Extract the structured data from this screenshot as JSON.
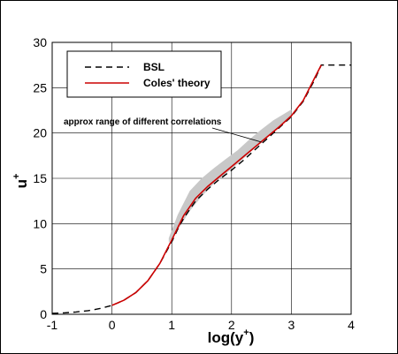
{
  "chart_data": {
    "type": "line",
    "title": "",
    "xlabel": "log(y",
    "xlabel_sup": "+",
    "xlabel_close": ")",
    "ylabel": "u",
    "ylabel_sup": "+",
    "xlim": [
      -1,
      4
    ],
    "ylim": [
      0,
      30
    ],
    "x_ticks": [
      "-1",
      "0",
      "1",
      "2",
      "3",
      "4"
    ],
    "y_ticks": [
      "0",
      "5",
      "10",
      "15",
      "20",
      "25",
      "30"
    ],
    "grid": true,
    "legend_position": "top-left",
    "series": [
      {
        "name": "BSL",
        "style": "dashed",
        "color": "#000000",
        "x": [
          -1.0,
          -0.8,
          -0.6,
          -0.4,
          -0.2,
          0.0,
          0.2,
          0.4,
          0.6,
          0.8,
          1.0,
          1.1,
          1.2,
          1.4,
          1.6,
          1.8,
          2.0,
          2.2,
          2.4,
          2.6,
          2.8,
          3.0,
          3.2,
          3.4,
          3.5,
          3.6,
          4.0
        ],
        "y": [
          0.1,
          0.16,
          0.25,
          0.4,
          0.63,
          0.98,
          1.55,
          2.4,
          3.7,
          5.6,
          8.0,
          9.4,
          10.6,
          12.5,
          13.8,
          14.9,
          15.9,
          17.0,
          18.2,
          19.4,
          20.6,
          21.8,
          23.5,
          26.0,
          27.5,
          27.5,
          27.5
        ]
      },
      {
        "name": "Coles' theory",
        "style": "solid",
        "color": "#cc0000",
        "x": [
          0.0,
          0.2,
          0.4,
          0.6,
          0.8,
          1.0,
          1.2,
          1.4,
          1.6,
          1.8,
          2.0,
          2.2,
          2.4,
          2.6,
          2.8,
          3.0,
          3.2,
          3.4,
          3.5
        ],
        "y": [
          0.98,
          1.55,
          2.4,
          3.7,
          5.6,
          8.2,
          10.9,
          12.8,
          14.1,
          15.2,
          16.3,
          17.4,
          18.5,
          19.6,
          20.7,
          21.9,
          23.6,
          26.2,
          27.5
        ]
      }
    ],
    "band": {
      "color": "#c8c8c8",
      "x": [
        0.95,
        1.1,
        1.3,
        1.5,
        1.7,
        1.9,
        2.1,
        2.3,
        2.5,
        2.7,
        2.9,
        3.0
      ],
      "lower": [
        7.9,
        9.3,
        11.4,
        13.0,
        14.4,
        15.5,
        16.6,
        17.8,
        19.0,
        20.2,
        21.3,
        21.9
      ],
      "upper": [
        8.4,
        11.0,
        13.6,
        15.0,
        16.1,
        17.1,
        18.1,
        19.3,
        20.4,
        21.4,
        22.2,
        22.6
      ]
    },
    "annotation": {
      "text": "approx range of different correlations",
      "points_to": [
        2.5,
        19.0
      ]
    }
  }
}
